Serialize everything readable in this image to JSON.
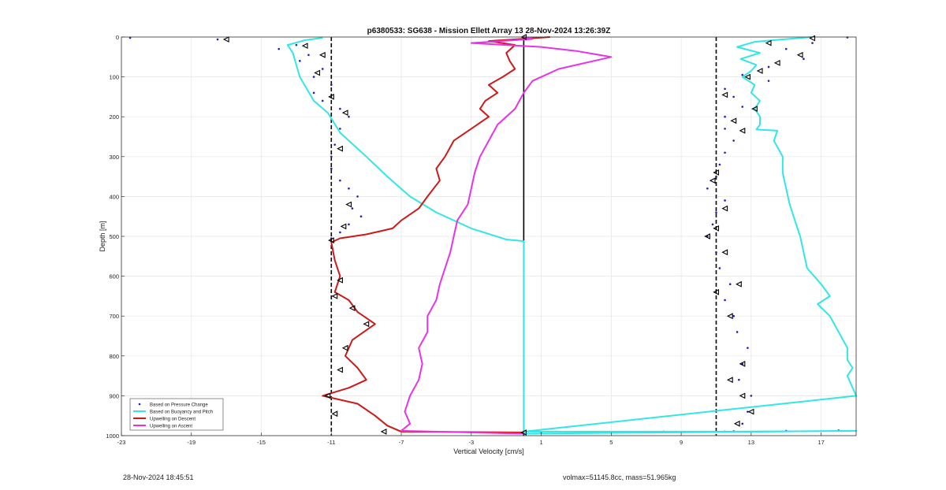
{
  "chart_data": {
    "type": "line",
    "title": "p6380533: SG638 - Mission Ellett Array 13 28-Nov-2024 13:26:39Z",
    "xlabel": "Vertical Velocity [cm/s]",
    "ylabel": "Depth [m]",
    "xlim": [
      -23,
      19
    ],
    "ylim": [
      0,
      1000
    ],
    "y_reversed": true,
    "x_ticks": [
      -23,
      -19,
      -15,
      -11,
      -7,
      -3,
      1,
      5,
      9,
      13,
      17
    ],
    "y_ticks": [
      0,
      100,
      200,
      300,
      400,
      500,
      600,
      700,
      800,
      900,
      1000
    ],
    "grid": true,
    "legend_position": "bottom-left",
    "reference_lines": [
      {
        "x": -11,
        "style": "dashed",
        "color": "#000000"
      },
      {
        "x": 11,
        "style": "dashed",
        "color": "#000000"
      },
      {
        "x": 0,
        "style": "solid",
        "color": "#000000"
      }
    ],
    "series": [
      {
        "name": "Based on Pressure Change",
        "color": "#1f1fb4",
        "style": "markers",
        "points": [
          [
            -22.5,
            2
          ],
          [
            -17.5,
            6
          ],
          [
            -14.0,
            30
          ],
          [
            -13.0,
            20
          ],
          [
            -12.3,
            45
          ],
          [
            -12.8,
            60
          ],
          [
            -11.5,
            80
          ],
          [
            -12.0,
            100
          ],
          [
            -11.0,
            120
          ],
          [
            -12.0,
            140
          ],
          [
            -11.5,
            160
          ],
          [
            -10.5,
            180
          ],
          [
            -10.0,
            200
          ],
          [
            -10.5,
            230
          ],
          [
            -10.8,
            270
          ],
          [
            -11.0,
            300
          ],
          [
            -11.0,
            330
          ],
          [
            -10.5,
            360
          ],
          [
            -10.0,
            380
          ],
          [
            -9.5,
            400
          ],
          [
            -9.8,
            430
          ],
          [
            -9.3,
            450
          ],
          [
            -10.0,
            470
          ],
          [
            -10.5,
            490
          ],
          [
            -11.0,
            505
          ],
          [
            18.5,
            1
          ],
          [
            16.5,
            15
          ],
          [
            15.0,
            30
          ],
          [
            16.0,
            55
          ],
          [
            14.0,
            75
          ],
          [
            12.5,
            95
          ],
          [
            14.0,
            110
          ],
          [
            11.5,
            130
          ],
          [
            12.0,
            150
          ],
          [
            12.5,
            175
          ],
          [
            11.5,
            200
          ],
          [
            11.5,
            230
          ],
          [
            12.0,
            260
          ],
          [
            11.5,
            290
          ],
          [
            11.2,
            320
          ],
          [
            11.0,
            350
          ],
          [
            10.5,
            380
          ],
          [
            11.5,
            410
          ],
          [
            11.0,
            440
          ],
          [
            10.8,
            470
          ],
          [
            10.5,
            500
          ],
          [
            11.0,
            540
          ],
          [
            11.2,
            580
          ],
          [
            11.8,
            620
          ],
          [
            11.5,
            660
          ],
          [
            12.0,
            700
          ],
          [
            12.2,
            740
          ],
          [
            12.8,
            780
          ],
          [
            12.5,
            820
          ],
          [
            12.3,
            860
          ],
          [
            13.0,
            900
          ],
          [
            12.8,
            940
          ],
          [
            12.5,
            970
          ],
          [
            11.5,
            990
          ],
          [
            1.0,
            992
          ],
          [
            5.0,
            991
          ],
          [
            8.0,
            990
          ],
          [
            12.0,
            989
          ],
          [
            15.0,
            988
          ],
          [
            18.0,
            987
          ]
        ]
      },
      {
        "name": "Based on Buoyancy and Pitch",
        "color": "#33e6e6",
        "style": "line",
        "points": [
          [
            16.5,
            0
          ],
          [
            14.8,
            6
          ],
          [
            13.2,
            12
          ],
          [
            12.2,
            25
          ],
          [
            13.5,
            40
          ],
          [
            12.4,
            55
          ],
          [
            13.3,
            70
          ],
          [
            13.0,
            85
          ],
          [
            12.5,
            100
          ],
          [
            13.2,
            120
          ],
          [
            13.0,
            140
          ],
          [
            13.5,
            160
          ],
          [
            13.2,
            180
          ],
          [
            13.5,
            200
          ],
          [
            13.5,
            220
          ],
          [
            13.3,
            232
          ],
          [
            14.5,
            235
          ],
          [
            14.3,
            260
          ],
          [
            14.8,
            300
          ],
          [
            14.8,
            340
          ],
          [
            15.0,
            380
          ],
          [
            15.2,
            420
          ],
          [
            15.5,
            460
          ],
          [
            15.8,
            500
          ],
          [
            16.0,
            540
          ],
          [
            16.2,
            580
          ],
          [
            17.0,
            620
          ],
          [
            17.5,
            650
          ],
          [
            16.8,
            670
          ],
          [
            17.5,
            700
          ],
          [
            18.0,
            740
          ],
          [
            18.5,
            780
          ],
          [
            18.5,
            810
          ],
          [
            18.8,
            830
          ],
          [
            18.5,
            850
          ],
          [
            18.8,
            880
          ],
          [
            19.0,
            900
          ],
          [
            0.0,
            990
          ],
          [
            6.0,
            990
          ],
          [
            12.0,
            990
          ],
          [
            16.0,
            989
          ],
          [
            19.0,
            988
          ],
          [
            0.0,
            995
          ],
          [
            0.0,
            850
          ],
          [
            0.0,
            700
          ],
          [
            0.0,
            600
          ],
          [
            0.0,
            512
          ],
          [
            -1.0,
            508
          ],
          [
            -3.0,
            480
          ],
          [
            -5.0,
            440
          ],
          [
            -6.5,
            400
          ],
          [
            -7.8,
            350
          ],
          [
            -9.0,
            300
          ],
          [
            -10.5,
            240
          ],
          [
            -11.2,
            190
          ],
          [
            -12.0,
            160
          ],
          [
            -12.4,
            130
          ],
          [
            -12.8,
            100
          ],
          [
            -13.0,
            70
          ],
          [
            -13.2,
            40
          ],
          [
            -13.5,
            20
          ],
          [
            -12.5,
            8
          ],
          [
            -11.5,
            2
          ]
        ]
      },
      {
        "name": "Upwelling on Descent",
        "color": "#cc1a1a",
        "style": "line",
        "points": [
          [
            1.5,
            0
          ],
          [
            -2.0,
            10
          ],
          [
            -0.5,
            20
          ],
          [
            -1.0,
            40
          ],
          [
            -0.8,
            60
          ],
          [
            -0.5,
            80
          ],
          [
            -1.2,
            100
          ],
          [
            -2.0,
            120
          ],
          [
            -1.5,
            140
          ],
          [
            -2.2,
            160
          ],
          [
            -2.5,
            180
          ],
          [
            -2.0,
            200
          ],
          [
            -3.0,
            230
          ],
          [
            -4.0,
            260
          ],
          [
            -4.5,
            300
          ],
          [
            -5.0,
            330
          ],
          [
            -4.8,
            360
          ],
          [
            -5.5,
            400
          ],
          [
            -6.0,
            430
          ],
          [
            -7.0,
            460
          ],
          [
            -7.5,
            480
          ],
          [
            -9.0,
            495
          ],
          [
            -10.5,
            505
          ],
          [
            -11.0,
            515
          ],
          [
            -10.8,
            560
          ],
          [
            -10.5,
            600
          ],
          [
            -10.8,
            640
          ],
          [
            -10.0,
            660
          ],
          [
            -9.5,
            690
          ],
          [
            -8.5,
            720
          ],
          [
            -9.8,
            760
          ],
          [
            -10.2,
            800
          ],
          [
            -9.5,
            830
          ],
          [
            -9.0,
            860
          ],
          [
            -10.0,
            880
          ],
          [
            -11.5,
            900
          ],
          [
            -9.5,
            920
          ],
          [
            -8.5,
            950
          ],
          [
            -7.8,
            975
          ],
          [
            -7.0,
            990
          ],
          [
            0.0,
            992
          ]
        ]
      },
      {
        "name": "Upwelling on Ascent",
        "color": "#e633e6",
        "style": "line",
        "points": [
          [
            0.0,
            995
          ],
          [
            -7.0,
            988
          ],
          [
            -6.5,
            970
          ],
          [
            -6.8,
            940
          ],
          [
            -6.5,
            900
          ],
          [
            -6.0,
            860
          ],
          [
            -5.8,
            820
          ],
          [
            -6.0,
            780
          ],
          [
            -5.5,
            740
          ],
          [
            -5.5,
            700
          ],
          [
            -5.0,
            660
          ],
          [
            -4.8,
            620
          ],
          [
            -4.5,
            580
          ],
          [
            -4.2,
            540
          ],
          [
            -4.0,
            500
          ],
          [
            -3.8,
            460
          ],
          [
            -3.2,
            420
          ],
          [
            -3.0,
            380
          ],
          [
            -2.8,
            340
          ],
          [
            -2.5,
            300
          ],
          [
            -2.0,
            260
          ],
          [
            -1.5,
            220
          ],
          [
            -0.5,
            180
          ],
          [
            0.0,
            140
          ],
          [
            0.5,
            110
          ],
          [
            2.0,
            80
          ],
          [
            5.0,
            50
          ],
          [
            3.0,
            35
          ],
          [
            1.0,
            25
          ],
          [
            -3.0,
            15
          ],
          [
            0.5,
            5
          ],
          [
            0.0,
            0
          ]
        ]
      }
    ],
    "dive_markers": {
      "color": "#000000",
      "style": "open-triangles",
      "points": [
        [
          -17.0,
          6
        ],
        [
          -12.5,
          22
        ],
        [
          -11.5,
          45
        ],
        [
          -11.8,
          90
        ],
        [
          -11.0,
          150
        ],
        [
          -10.2,
          190
        ],
        [
          -10.5,
          280
        ],
        [
          -10.0,
          420
        ],
        [
          -10.3,
          475
        ],
        [
          -11.0,
          510
        ],
        [
          -10.5,
          610
        ],
        [
          -10.8,
          650
        ],
        [
          -9.8,
          680
        ],
        [
          -9.0,
          720
        ],
        [
          -10.2,
          780
        ],
        [
          -10.5,
          835
        ],
        [
          -11.2,
          900
        ],
        [
          -10.8,
          945
        ],
        [
          -8.0,
          990
        ],
        [
          16.5,
          3
        ],
        [
          14.0,
          15
        ],
        [
          15.8,
          45
        ],
        [
          14.5,
          65
        ],
        [
          13.5,
          85
        ],
        [
          12.8,
          100
        ],
        [
          11.5,
          145
        ],
        [
          13.2,
          180
        ],
        [
          12.0,
          210
        ],
        [
          12.5,
          235
        ],
        [
          11.0,
          340
        ],
        [
          10.8,
          360
        ],
        [
          11.5,
          430
        ],
        [
          11.0,
          480
        ],
        [
          10.5,
          500
        ],
        [
          11.5,
          540
        ],
        [
          12.3,
          620
        ],
        [
          11.0,
          640
        ],
        [
          11.8,
          700
        ],
        [
          12.5,
          820
        ],
        [
          11.8,
          860
        ],
        [
          12.5,
          900
        ],
        [
          13.0,
          940
        ],
        [
          12.2,
          970
        ],
        [
          0.0,
          0
        ],
        [
          0.0,
          992
        ]
      ]
    }
  },
  "footer": {
    "timestamp": "28-Nov-2024 18:45:51",
    "summary": "volmax=51145.8cc, mass=51.965kg"
  }
}
